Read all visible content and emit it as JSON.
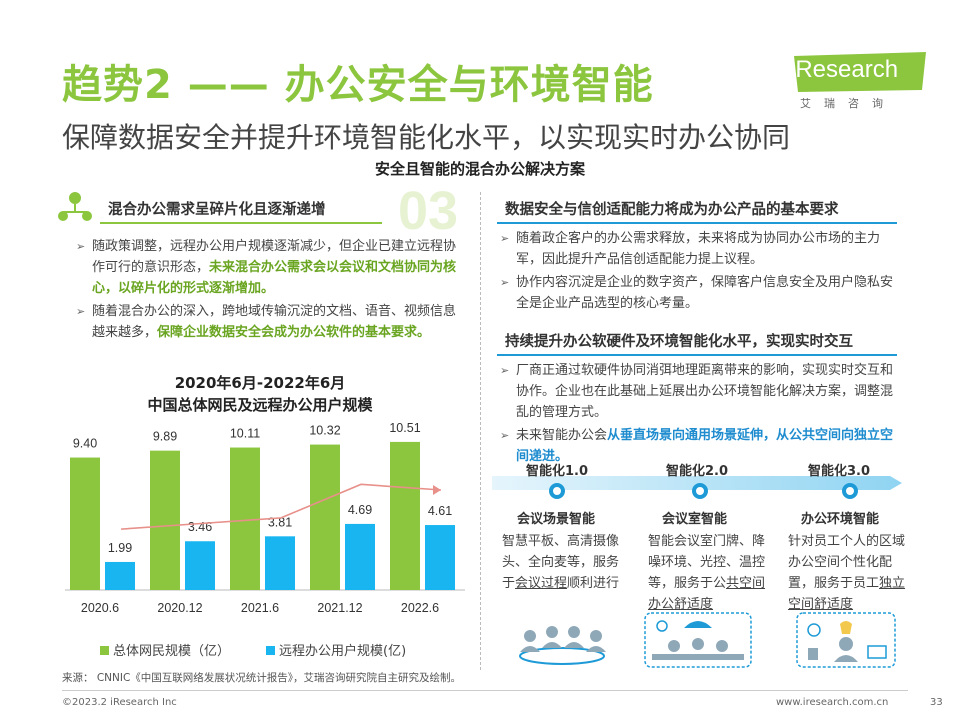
{
  "header": {
    "title": "趋势2 —— 办公安全与环境智能",
    "subtitle": "保障数据安全并提升环境智能化水平，以实现实时办公协同",
    "section_title": "安全且智能的混合办公解决方案",
    "logo_text": "iResearch",
    "logo_sub": "艾瑞咨询"
  },
  "left": {
    "heading": "混合办公需求呈碎片化且逐渐递增",
    "number": "03",
    "bullets": [
      {
        "text": "随政策调整，远程办公用户规模逐渐减少，但企业已建立远程协作可行的意识形态，",
        "highlight": "未来混合办公需求会以会议和文档协同为核心，以碎片化的形式逐渐增加。"
      },
      {
        "text": "随着混合办公的深入，跨地域传输沉淀的文档、语音、视频信息越来越多，",
        "highlight": "保障企业数据安全会成为办公软件的基本要求。"
      }
    ]
  },
  "chart_data": {
    "type": "bar",
    "title_line1": "2020年6月-2022年6月",
    "title_line2": "中国总体网民及远程办公用户规模",
    "categories": [
      "2020.6",
      "2020.12",
      "2021.6",
      "2021.12",
      "2022.6"
    ],
    "series": [
      {
        "name": "总体网民规模（亿）",
        "values": [
          9.4,
          9.89,
          10.11,
          10.32,
          10.51
        ],
        "color": "#8cc63f"
      },
      {
        "name": "远程办公用户规模(亿)",
        "values": [
          1.99,
          3.46,
          3.81,
          4.69,
          4.61
        ],
        "color": "#19b5f0"
      }
    ],
    "labels_series1": [
      "9.40",
      "9.89",
      "10.11",
      "10.32",
      "10.51"
    ],
    "labels_series2": [
      "1.99",
      "3.46",
      "3.81",
      "4.69",
      "4.61"
    ],
    "trend_color": "#e8908a",
    "ylim": [
      0,
      11
    ]
  },
  "source": "来源： CNNIC《中国互联网络发展状况统计报告》，艾瑞咨询研究院自主研究及绘制。",
  "footer": {
    "copyright": "©2023.2 iResearch Inc",
    "site": "www.iresearch.com.cn",
    "page": "33"
  },
  "right": {
    "heading1": "数据安全与信创适配能力将成为办公产品的基本要求",
    "bullets1": [
      "随着政企客户的办公需求释放，未来将成为协同办公市场的主力军，因此提升产品信创适配能力提上议程。",
      "协作内容沉淀是企业的数字资产，保障客户信息安全及用户隐私安全是企业产品选型的核心考量。"
    ],
    "heading2": "持续提升办公软硬件及环境智能化水平，实现实时交互",
    "bullets2": [
      {
        "text": "厂商正通过软硬件协同消弭地理距离带来的影响，实现实时交互和协作。企业也在此基础上延展出办公环境智能化解决方案，调整混乱的管理方式。",
        "highlight": ""
      },
      {
        "text": "未来智能办公会",
        "highlight": "从垂直场景向通用场景延伸，从公共空间向独立空间递进。"
      }
    ],
    "stages": [
      "智能化1.0",
      "智能化2.0",
      "智能化3.0"
    ],
    "columns": [
      {
        "title": "会议场景智能",
        "text_plain": "智慧平板、高清摄像头、全向麦等，服务于",
        "text_u": "会议过程",
        "text_end": "顺利进行"
      },
      {
        "title": "会议室智能",
        "text_plain": "智能会议室门牌、降噪环境、光控、温控等，服务于公",
        "text_u": "共空间办公舒适度",
        "text_end": ""
      },
      {
        "title": "办公环境智能",
        "text_plain": "针对员工个人的区域办公空间个性化配置，服务于员工",
        "text_u": "独立空间舒适度",
        "text_end": ""
      }
    ]
  },
  "colors": {
    "green": "#8cc63f",
    "blue": "#1e9bd7",
    "cyan": "#19b5f0"
  }
}
